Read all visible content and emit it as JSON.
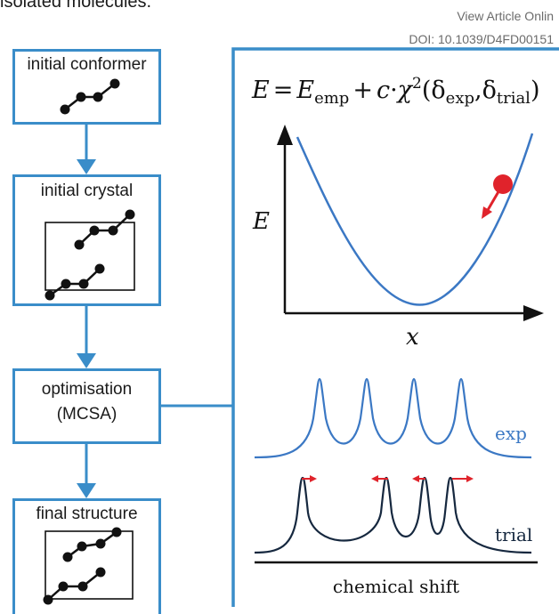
{
  "page": {
    "top_text": "isolated molecules.",
    "header_line1": "View Article Onlin",
    "header_line2": "DOI: 10.1039/D4FD00151"
  },
  "flowchart": {
    "steps": [
      {
        "label": "initial conformer"
      },
      {
        "label": "initial crystal"
      },
      {
        "label_line1": "optimisation",
        "label_line2": "(MCSA)"
      },
      {
        "label": "final structure"
      }
    ]
  },
  "panel": {
    "equation": {
      "E": "E",
      "eq": "=",
      "Eemp_base": "E",
      "Eemp_sub": "emp",
      "plus": "+",
      "c": "c",
      "dot": "·",
      "chi": "χ",
      "sq": "2",
      "open": "(",
      "delta1": "δ",
      "sub1": "exp",
      "comma": ",",
      "delta2": "δ",
      "sub2": "trial",
      "close": ")"
    },
    "energy_plot": {
      "ylabel": "E",
      "xlabel": "x"
    },
    "spectra": {
      "exp_label": "exp",
      "trial_label": "trial",
      "axis_label": "chemical shift"
    }
  },
  "colors": {
    "flow_blue": "#3a8dc9",
    "curve_blue": "#3b78c4",
    "trial_navy": "#16283f",
    "arrow_red": "#e0232b"
  }
}
